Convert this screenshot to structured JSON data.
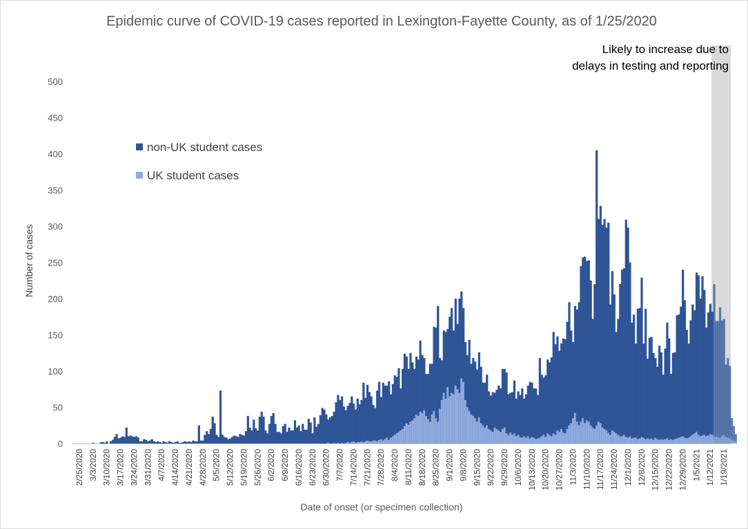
{
  "chart_data": {
    "type": "bar",
    "stacked": true,
    "title": "Epidemic curve of COVID-19 cases reported in Lexington-Fayette County, as of 1/25/2020",
    "xlabel": "Date of onset (or specimen collection)",
    "ylabel": "Number of cases",
    "ylim": [
      0,
      500
    ],
    "yticks": [
      0,
      50,
      100,
      150,
      200,
      250,
      300,
      350,
      400,
      450,
      500
    ],
    "grid": false,
    "legend_position": "upper-left",
    "x_tick_labels": [
      "2/25/2020",
      "3/3/2020",
      "3/10/2020",
      "3/17/2020",
      "3/24/2020",
      "3/31/2020",
      "4/7/2020",
      "4/14/2020",
      "4/21/2020",
      "4/28/2020",
      "5/5/2020",
      "5/12/2020",
      "5/19/2020",
      "5/26/2020",
      "6/2/2020",
      "6/9/2020",
      "6/16/2020",
      "6/23/2020",
      "6/30/2020",
      "7/7/2020",
      "7/14/2020",
      "7/21/2020",
      "7/28/2020",
      "8/4/2020",
      "8/11/2020",
      "8/18/2020",
      "8/25/2020",
      "9/1/2020",
      "9/8/2020",
      "9/15/2020",
      "9/22/2020",
      "9/29/2020",
      "10/6/2020",
      "10/13/2020",
      "10/20/2020",
      "10/27/2020",
      "11/3/2020",
      "11/10/2020",
      "11/17/2020",
      "11/24/2020",
      "12/1/2020",
      "12/8/2020",
      "12/15/2020",
      "12/22/2020",
      "12/29/2020",
      "1/5/2021",
      "1/12/2021",
      "1/19/2021"
    ],
    "series": [
      {
        "name": "non-UK student cases",
        "color": "#2f5597",
        "weekly_values": [
          [
            0,
            0,
            0,
            0,
            0,
            0,
            0
          ],
          [
            0,
            0,
            0,
            1,
            0,
            0,
            0
          ],
          [
            2,
            2,
            1,
            3,
            0,
            3,
            5
          ],
          [
            9,
            13,
            7,
            8,
            10,
            9,
            22
          ],
          [
            10,
            11,
            10,
            9,
            10,
            8,
            3
          ],
          [
            3,
            6,
            5,
            3,
            4,
            6,
            3
          ],
          [
            2,
            3,
            2,
            1,
            3,
            2,
            1
          ],
          [
            3,
            2,
            1,
            2,
            3,
            1,
            1
          ],
          [
            2,
            3,
            2,
            3,
            2,
            4,
            3
          ],
          [
            3,
            25,
            4,
            4,
            12,
            17,
            13
          ],
          [
            20,
            37,
            28,
            12,
            9,
            73,
            12
          ],
          [
            9,
            8,
            6,
            7,
            9,
            11,
            10
          ],
          [
            9,
            13,
            12,
            11,
            17,
            38,
            22
          ],
          [
            18,
            33,
            21,
            18,
            37,
            44,
            37
          ],
          [
            18,
            14,
            27,
            38,
            42,
            27,
            16
          ],
          [
            16,
            14,
            24,
            27,
            16,
            22,
            18
          ],
          [
            18,
            32,
            22,
            25,
            17,
            27,
            19
          ],
          [
            19,
            34,
            29,
            14,
            36,
            23,
            27
          ],
          [
            39,
            49,
            47,
            40,
            32,
            36,
            38
          ],
          [
            43,
            57,
            66,
            60,
            64,
            51,
            45
          ],
          [
            50,
            55,
            63,
            52,
            46,
            60,
            52
          ],
          [
            57,
            82,
            60,
            77,
            68,
            62,
            49
          ],
          [
            45,
            70,
            80,
            58,
            80,
            74,
            72
          ],
          [
            81,
            60,
            72,
            82,
            78,
            88,
            58
          ],
          [
            83,
            100,
            92,
            77,
            95,
            80,
            68
          ],
          [
            80,
            78,
            98,
            80,
            72,
            58,
            62
          ],
          [
            80,
            70,
            116,
            125,
            160,
            70,
            55
          ],
          [
            86,
            92,
            80,
            110,
            117,
            88,
            120
          ],
          [
            90,
            130,
            120,
            102,
            80,
            72,
            98
          ],
          [
            70,
            80,
            78,
            72,
            90,
            78,
            59
          ],
          [
            62,
            70,
            52,
            48,
            55,
            48,
            54
          ],
          [
            62,
            60,
            83,
            81,
            84,
            56,
            55
          ],
          [
            59,
            73,
            52,
            60,
            58,
            68,
            52
          ],
          [
            60,
            70,
            78,
            75,
            68,
            70,
            60
          ],
          [
            110,
            85,
            79,
            85,
            102,
            100,
            109
          ],
          [
            140,
            125,
            130,
            112,
            118,
            130,
            130
          ],
          [
            148,
            170,
            128,
            105,
            148,
            155,
            170
          ],
          [
            215,
            222,
            230,
            220,
            223,
            200,
            150
          ],
          [
            200,
            380,
            280,
            300,
            280,
            290,
            280
          ],
          [
            290,
            180,
            220,
            190,
            140,
            160,
            210
          ],
          [
            230,
            230,
            300,
            290,
            240,
            160,
            170
          ],
          [
            130,
            180,
            180,
            220,
            130,
            180,
            110
          ],
          [
            140,
            140,
            120,
            110,
            100,
            130,
            120
          ],
          [
            90,
            125,
            160,
            140,
            90,
            120,
            120
          ],
          [
            170,
            170,
            180,
            230,
            190,
            150,
            130
          ],
          [
            160,
            180,
            170,
            220,
            220,
            190,
            220
          ],
          [
            200,
            150,
            170,
            180,
            170,
            210,
            160
          ],
          [
            160,
            180,
            160,
            160,
            100,
            110,
            100
          ],
          [
            30,
            20,
            10,
            0,
            0,
            0,
            0
          ]
        ]
      },
      {
        "name": "UK student cases",
        "color": "#8faadc",
        "weekly_values": [
          [
            0,
            0,
            0,
            0,
            0,
            0,
            0
          ],
          [
            0,
            0,
            0,
            0,
            0,
            0,
            0
          ],
          [
            0,
            0,
            0,
            0,
            0,
            0,
            0
          ],
          [
            0,
            0,
            0,
            0,
            0,
            0,
            0
          ],
          [
            0,
            0,
            0,
            0,
            0,
            0,
            0
          ],
          [
            0,
            0,
            0,
            0,
            0,
            0,
            0
          ],
          [
            0,
            0,
            0,
            0,
            0,
            0,
            0
          ],
          [
            0,
            0,
            0,
            0,
            0,
            0,
            0
          ],
          [
            0,
            0,
            0,
            0,
            0,
            0,
            0
          ],
          [
            0,
            0,
            0,
            0,
            0,
            0,
            0
          ],
          [
            0,
            0,
            0,
            0,
            0,
            0,
            0
          ],
          [
            0,
            0,
            0,
            0,
            0,
            0,
            0
          ],
          [
            0,
            0,
            0,
            0,
            0,
            0,
            0
          ],
          [
            0,
            0,
            0,
            0,
            0,
            0,
            0
          ],
          [
            0,
            0,
            0,
            0,
            0,
            0,
            0
          ],
          [
            0,
            0,
            0,
            0,
            0,
            0,
            0
          ],
          [
            0,
            0,
            0,
            0,
            0,
            0,
            0
          ],
          [
            0,
            0,
            0,
            0,
            0,
            0,
            0
          ],
          [
            0,
            0,
            0,
            0,
            1,
            0,
            0
          ],
          [
            1,
            0,
            1,
            0,
            1,
            0,
            1
          ],
          [
            2,
            1,
            2,
            3,
            1,
            2,
            2
          ],
          [
            3,
            2,
            3,
            4,
            3,
            3,
            4
          ],
          [
            4,
            3,
            5,
            6,
            4,
            6,
            8
          ],
          [
            5,
            8,
            10,
            12,
            14,
            16,
            18
          ],
          [
            20,
            24,
            28,
            26,
            30,
            32,
            35
          ],
          [
            40,
            38,
            44,
            42,
            46,
            38,
            34
          ],
          [
            30,
            40,
            45,
            35,
            30,
            48,
            60
          ],
          [
            70,
            62,
            78,
            65,
            70,
            68,
            80
          ],
          [
            75,
            70,
            90,
            85,
            60,
            50,
            45
          ],
          [
            40,
            38,
            35,
            30,
            36,
            28,
            25
          ],
          [
            22,
            25,
            20,
            18,
            16,
            22,
            20
          ],
          [
            18,
            16,
            20,
            22,
            14,
            12,
            15
          ],
          [
            12,
            14,
            10,
            12,
            9,
            8,
            10
          ],
          [
            8,
            10,
            7,
            9,
            8,
            6,
            7
          ],
          [
            8,
            10,
            12,
            9,
            14,
            12,
            10
          ],
          [
            14,
            12,
            18,
            16,
            20,
            15,
            14
          ],
          [
            20,
            25,
            28,
            35,
            42,
            30,
            25
          ],
          [
            30,
            35,
            28,
            32,
            30,
            25,
            22
          ],
          [
            20,
            25,
            30,
            28,
            22,
            20,
            18
          ],
          [
            15,
            12,
            18,
            16,
            14,
            12,
            10
          ],
          [
            10,
            12,
            9,
            8,
            10,
            7,
            8
          ],
          [
            8,
            6,
            7,
            9,
            8,
            6,
            7
          ],
          [
            6,
            7,
            5,
            8,
            6,
            5,
            6
          ],
          [
            5,
            6,
            7,
            5,
            6,
            5,
            6
          ],
          [
            7,
            8,
            9,
            10,
            8,
            7,
            8
          ],
          [
            10,
            12,
            14,
            16,
            12,
            10,
            11
          ],
          [
            12,
            10,
            11,
            13,
            12,
            10,
            9
          ],
          [
            9,
            8,
            10,
            12,
            9,
            8,
            7
          ],
          [
            5,
            4,
            3,
            0,
            0,
            0,
            0
          ]
        ]
      }
    ],
    "shaded_region_label": "Likely to increase due to delays in testing and reporting",
    "shaded_region_color": "#d9d9d9"
  }
}
